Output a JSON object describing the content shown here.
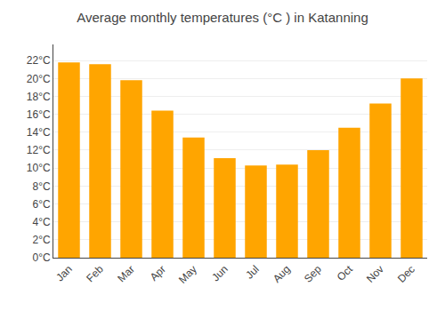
{
  "chart_data": {
    "type": "bar",
    "title": "Average monthly temperatures (°C ) in Katanning",
    "categories": [
      "Jan",
      "Feb",
      "Mar",
      "Apr",
      "May",
      "Jun",
      "Jul",
      "Aug",
      "Sep",
      "Oct",
      "Nov",
      "Dec"
    ],
    "values": [
      21.8,
      21.6,
      19.8,
      16.4,
      13.4,
      11.1,
      10.3,
      10.4,
      12.0,
      14.5,
      17.2,
      20.0
    ],
    "color": "#FFA500",
    "ylim": [
      0,
      23.8
    ],
    "yticks": [
      {
        "value": 0,
        "label": "0°C"
      },
      {
        "value": 2,
        "label": "2°C"
      },
      {
        "value": 4,
        "label": "4°C"
      },
      {
        "value": 6,
        "label": "6°C"
      },
      {
        "value": 8,
        "label": "8°C"
      },
      {
        "value": 10,
        "label": "10°C"
      },
      {
        "value": 12,
        "label": "12°C"
      },
      {
        "value": 14,
        "label": "14°C"
      },
      {
        "value": 16,
        "label": "16°C"
      },
      {
        "value": 18,
        "label": "18°C"
      },
      {
        "value": 20,
        "label": "20°C"
      },
      {
        "value": 22,
        "label": "22°C"
      }
    ],
    "grid": true
  }
}
